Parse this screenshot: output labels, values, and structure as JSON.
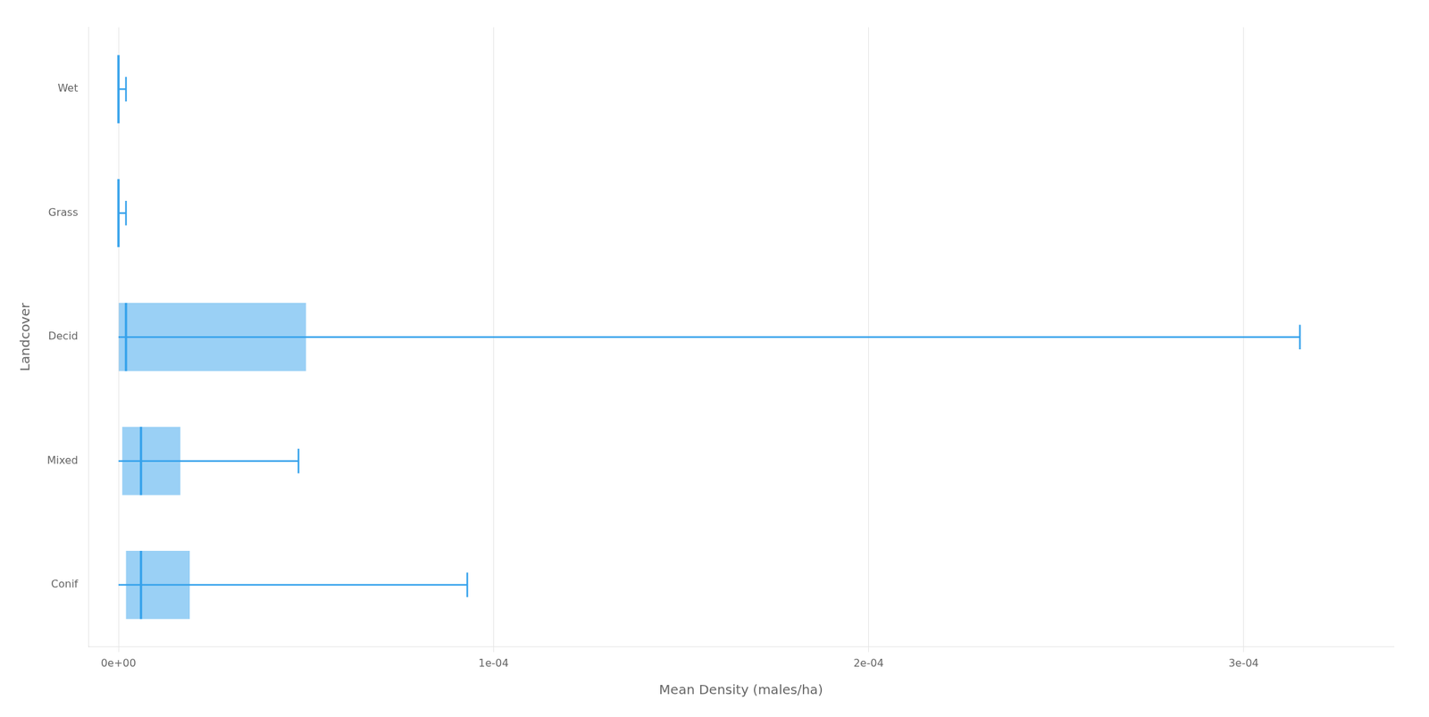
{
  "chart_data": {
    "type": "box",
    "orientation": "horizontal",
    "xlabel": "Mean Density (males/ha)",
    "ylabel": "Landcover",
    "categories": [
      "Conif",
      "Mixed",
      "Decid",
      "Grass",
      "Wet"
    ],
    "q1": [
      2e-06,
      1e-06,
      0.0,
      0.0,
      0.0
    ],
    "median": [
      6e-06,
      6e-06,
      2e-06,
      0.0,
      0.0
    ],
    "q3": [
      1.9e-05,
      1.65e-05,
      5e-05,
      0.0,
      0.0
    ],
    "whisker_low": [
      0.0,
      0.0,
      0.0,
      0.0,
      0.0
    ],
    "whisker_high": [
      9.3e-05,
      4.8e-05,
      0.000315,
      2e-06,
      2e-06
    ],
    "xlim": [
      -8e-06,
      0.00034
    ],
    "xticks": [
      {
        "value": 0.0,
        "label": "0e+00"
      },
      {
        "value": 0.0001,
        "label": "1e-04"
      },
      {
        "value": 0.0002,
        "label": "2e-04"
      },
      {
        "value": 0.0003,
        "label": "3e-04"
      }
    ],
    "grid": "x"
  }
}
